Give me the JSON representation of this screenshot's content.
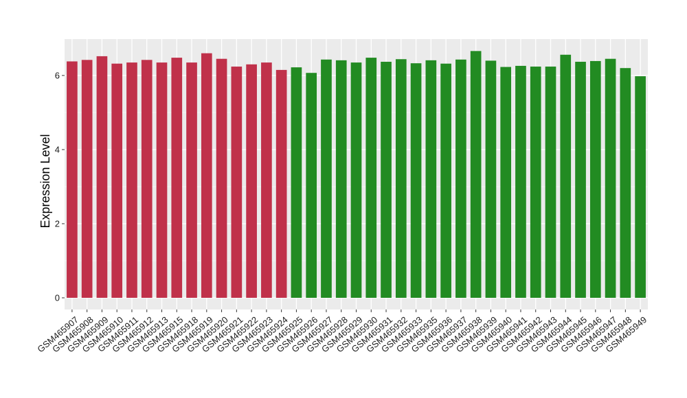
{
  "chart_data": {
    "type": "bar",
    "title": "",
    "xlabel": "",
    "ylabel": "Expression Level",
    "ylim": [
      -0.3,
      7.0
    ],
    "yticks": [
      0,
      2,
      4,
      6
    ],
    "grid": true,
    "legend": "none",
    "categories": [
      "GSM465907",
      "GSM465908",
      "GSM465909",
      "GSM465910",
      "GSM465911",
      "GSM465912",
      "GSM465913",
      "GSM465915",
      "GSM465918",
      "GSM465919",
      "GSM465920",
      "GSM465921",
      "GSM465922",
      "GSM465923",
      "GSM465924",
      "GSM465925",
      "GSM465926",
      "GSM465927",
      "GSM465928",
      "GSM465929",
      "GSM465930",
      "GSM465931",
      "GSM465932",
      "GSM465933",
      "GSM465935",
      "GSM465936",
      "GSM465937",
      "GSM465938",
      "GSM465939",
      "GSM465940",
      "GSM465941",
      "GSM465942",
      "GSM465943",
      "GSM465944",
      "GSM465945",
      "GSM465946",
      "GSM465947",
      "GSM465948",
      "GSM465949"
    ],
    "values": [
      6.38,
      6.42,
      6.52,
      6.32,
      6.35,
      6.42,
      6.35,
      6.48,
      6.35,
      6.6,
      6.45,
      6.24,
      6.3,
      6.35,
      6.15,
      6.22,
      6.07,
      6.43,
      6.41,
      6.35,
      6.48,
      6.37,
      6.44,
      6.33,
      6.41,
      6.32,
      6.43,
      6.66,
      6.4,
      6.23,
      6.26,
      6.24,
      6.24,
      6.56,
      6.37,
      6.39,
      6.45,
      6.2,
      5.98
    ],
    "bar_colors": [
      "#c0314a",
      "#c0314a",
      "#c0314a",
      "#c0314a",
      "#c0314a",
      "#c0314a",
      "#c0314a",
      "#c0314a",
      "#c0314a",
      "#c0314a",
      "#c0314a",
      "#c0314a",
      "#c0314a",
      "#c0314a",
      "#c0314a",
      "#228b22",
      "#228b22",
      "#228b22",
      "#228b22",
      "#228b22",
      "#228b22",
      "#228b22",
      "#228b22",
      "#228b22",
      "#228b22",
      "#228b22",
      "#228b22",
      "#228b22",
      "#228b22",
      "#228b22",
      "#228b22",
      "#228b22",
      "#228b22",
      "#228b22",
      "#228b22",
      "#228b22",
      "#228b22",
      "#228b22",
      "#228b22"
    ],
    "panel_background": "#ebebeb",
    "grid_color": "#ffffff"
  }
}
